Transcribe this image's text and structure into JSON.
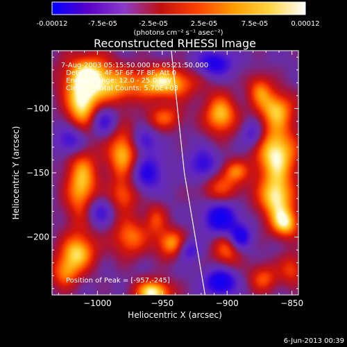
{
  "colorbar": {
    "ticks": [
      "-0.00012",
      "-7.5e-05",
      "-2.5e-05",
      "2.5e-05",
      "7.5e-05",
      "0.00012"
    ],
    "units": "(photons cm⁻² s⁻¹ asec⁻²)",
    "colors": [
      "#0000ff",
      "#5a00c8",
      "#8a3cc8",
      "#c01010",
      "#ff4000",
      "#ff9a00",
      "#ffd540",
      "#ffffff"
    ]
  },
  "chart_data": {
    "type": "heatmap",
    "title": "Reconstructed RHESSI Image",
    "annotations": [
      "7-Aug-2003 05:15:50.000 to 05:21:50.000",
      "Detectors: 4F 5F 6F 7F 8F, Att 0",
      "Energy Range: 12.0 - 25.0 keV",
      "Clean     Total Counts: 5.70E+03"
    ],
    "peak_label": "Position of Peak = [-957,-245]",
    "peak": [
      -957,
      -245
    ],
    "xlabel": "Heliocentric X (arcsec)",
    "ylabel": "Heliocentric Y (arcsec)",
    "xlim": [
      -1035,
      -845
    ],
    "ylim": [
      -245,
      -55
    ],
    "xticks": [
      -1000,
      -950,
      -900,
      -850
    ],
    "xtick_labels": [
      "−1000",
      "−950",
      "−900",
      "−850"
    ],
    "yticks": [
      -100,
      -150,
      -200
    ],
    "ytick_labels": [
      "−100",
      "−150",
      "−200"
    ],
    "limb_curve": [
      [
        -943,
        -55
      ],
      [
        -933,
        -150
      ],
      [
        -917,
        -245
      ]
    ],
    "blobs": [
      {
        "x": -1007,
        "y": -75,
        "sx": 14,
        "sy": 12,
        "a": 1.0
      },
      {
        "x": -1012,
        "y": -98,
        "sx": 9,
        "sy": 12,
        "a": 0.85
      },
      {
        "x": -1012,
        "y": -160,
        "sx": 9,
        "sy": 22,
        "a": 0.85
      },
      {
        "x": -1015,
        "y": -212,
        "sx": 10,
        "sy": 10,
        "a": 0.8
      },
      {
        "x": -1025,
        "y": -228,
        "sx": 8,
        "sy": 9,
        "a": 0.6
      },
      {
        "x": -985,
        "y": -85,
        "sx": 10,
        "sy": 10,
        "a": 0.45
      },
      {
        "x": -980,
        "y": -135,
        "sx": 9,
        "sy": 14,
        "a": 0.85
      },
      {
        "x": -980,
        "y": -168,
        "sx": 8,
        "sy": 9,
        "a": 0.55
      },
      {
        "x": -975,
        "y": -200,
        "sx": 10,
        "sy": 11,
        "a": 0.65
      },
      {
        "x": -950,
        "y": -80,
        "sx": 18,
        "sy": 9,
        "a": 0.95
      },
      {
        "x": -948,
        "y": -107,
        "sx": 10,
        "sy": 7,
        "a": 0.55
      },
      {
        "x": -957,
        "y": -243,
        "sx": 10,
        "sy": 7,
        "a": 1.0
      },
      {
        "x": -955,
        "y": -186,
        "sx": 6,
        "sy": 9,
        "a": 0.45
      },
      {
        "x": -943,
        "y": -205,
        "sx": 8,
        "sy": 8,
        "a": 0.75
      },
      {
        "x": -905,
        "y": -105,
        "sx": 9,
        "sy": 11,
        "a": 0.85
      },
      {
        "x": -905,
        "y": -160,
        "sx": 12,
        "sy": 10,
        "a": 0.55
      },
      {
        "x": -893,
        "y": -148,
        "sx": 7,
        "sy": 6,
        "a": 0.45
      },
      {
        "x": -900,
        "y": -210,
        "sx": 8,
        "sy": 9,
        "a": 0.6
      },
      {
        "x": -875,
        "y": -85,
        "sx": 7,
        "sy": 9,
        "a": 0.55
      },
      {
        "x": -862,
        "y": -100,
        "sx": 10,
        "sy": 10,
        "a": 0.75
      },
      {
        "x": -862,
        "y": -135,
        "sx": 12,
        "sy": 16,
        "a": 1.0
      },
      {
        "x": -862,
        "y": -170,
        "sx": 10,
        "sy": 12,
        "a": 0.9
      },
      {
        "x": -855,
        "y": -190,
        "sx": 8,
        "sy": 8,
        "a": 0.8
      },
      {
        "x": -872,
        "y": -232,
        "sx": 8,
        "sy": 8,
        "a": 0.55
      },
      {
        "x": -850,
        "y": -225,
        "sx": 7,
        "sy": 9,
        "a": 0.5
      },
      {
        "x": -1020,
        "y": -125,
        "sx": 8,
        "sy": 8,
        "a": -0.6
      },
      {
        "x": -1000,
        "y": -180,
        "sx": 8,
        "sy": 8,
        "a": -0.55
      },
      {
        "x": -995,
        "y": -110,
        "sx": 7,
        "sy": 8,
        "a": -0.5
      },
      {
        "x": -962,
        "y": -150,
        "sx": 9,
        "sy": 10,
        "a": -0.6
      },
      {
        "x": -965,
        "y": -125,
        "sx": 7,
        "sy": 7,
        "a": -0.5
      },
      {
        "x": -910,
        "y": -65,
        "sx": 10,
        "sy": 7,
        "a": -0.65
      },
      {
        "x": -918,
        "y": -145,
        "sx": 8,
        "sy": 9,
        "a": -0.6
      },
      {
        "x": -905,
        "y": -185,
        "sx": 9,
        "sy": 9,
        "a": -0.8
      },
      {
        "x": -905,
        "y": -235,
        "sx": 8,
        "sy": 7,
        "a": -0.85
      },
      {
        "x": -890,
        "y": -200,
        "sx": 6,
        "sy": 7,
        "a": -0.7
      },
      {
        "x": -880,
        "y": -120,
        "sx": 6,
        "sy": 8,
        "a": -0.5
      },
      {
        "x": -930,
        "y": -210,
        "sx": 6,
        "sy": 6,
        "a": -0.5
      }
    ]
  },
  "timestamp": "6-Jun-2013 00:39"
}
